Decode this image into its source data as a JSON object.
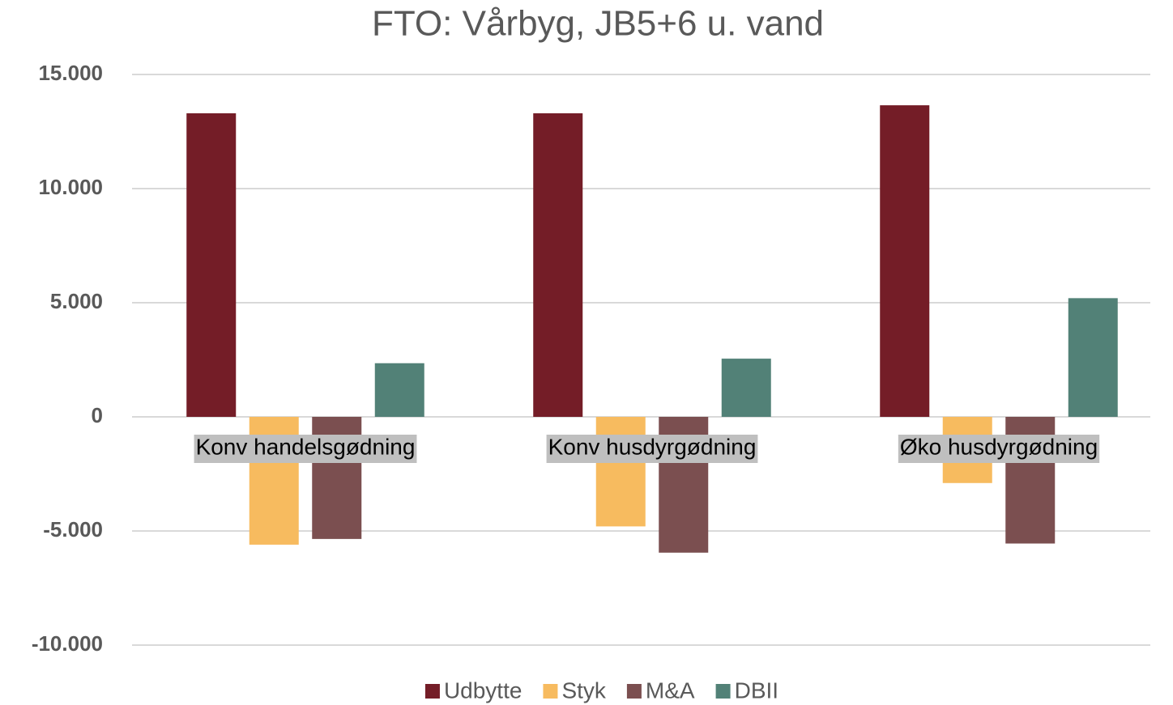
{
  "chart_data": {
    "type": "bar",
    "title": "FTO: Vårbyg, JB5+6 u. vand",
    "categories": [
      "Konv handelsgødning",
      "Konv husdyrgødning",
      "Øko husdyrgødning"
    ],
    "series": [
      {
        "name": "Udbytte",
        "color": "#741d27",
        "values": [
          13300,
          13300,
          13650
        ]
      },
      {
        "name": "Styk",
        "color": "#f7bb5f",
        "values": [
          -5600,
          -4800,
          -2900
        ]
      },
      {
        "name": "M&A",
        "color": "#7b4f50",
        "values": [
          -5350,
          -5950,
          -5550
        ]
      },
      {
        "name": "DBII",
        "color": "#528177",
        "values": [
          2350,
          2550,
          5200
        ]
      }
    ],
    "ylim": [
      -10000,
      15000
    ],
    "yticks": [
      {
        "value": -10000,
        "label": "-10.000"
      },
      {
        "value": -5000,
        "label": "-5.000"
      },
      0,
      {
        "value": 5000,
        "label": "5.000"
      },
      {
        "value": 10000,
        "label": "10.000"
      },
      {
        "value": 15000,
        "label": "15.000"
      }
    ],
    "grid": true,
    "legend": "bottom"
  }
}
